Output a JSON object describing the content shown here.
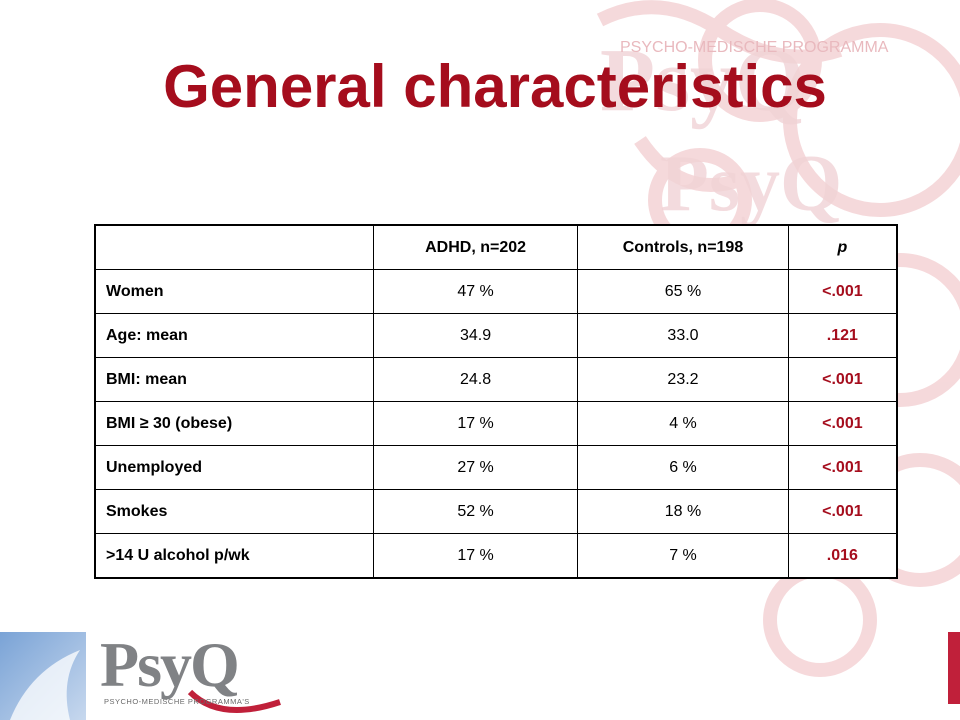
{
  "title": "General characteristics",
  "table": {
    "headers": [
      "",
      "ADHD, n=202",
      "Controls, n=198",
      "p"
    ],
    "rows": [
      {
        "label": "Women",
        "adhd": "47 %",
        "controls": "65 %",
        "p": "<.001"
      },
      {
        "label": "Age: mean",
        "adhd": "34.9",
        "controls": "33.0",
        "p": ".121"
      },
      {
        "label": "BMI: mean",
        "adhd": "24.8",
        "controls": "23.2",
        "p": "<.001"
      },
      {
        "label": "BMI ≥ 30 (obese)",
        "adhd": "17 %",
        "controls": "4 %",
        "p": "<.001"
      },
      {
        "label": "Unemployed",
        "adhd": "27 %",
        "controls": "6 %",
        "p": "<.001"
      },
      {
        "label": "Smokes",
        "adhd": "52 %",
        "controls": "18 %",
        "p": "<.001"
      },
      {
        "label": ">14 U alcohol p/wk",
        "adhd": "17 %",
        "controls": "7 %",
        "p": ".016"
      }
    ]
  },
  "logo": {
    "name": "PsyQ",
    "subtitle": "PSYCHO-MEDISCHE PROGRAMMA'S"
  },
  "watermark": {
    "text": "PSYCHO-MEDISCHE PROGRAMMA"
  },
  "colors": {
    "accent": "#a50d1d",
    "bar": "#c0203a",
    "logo_gray": "#808285"
  }
}
